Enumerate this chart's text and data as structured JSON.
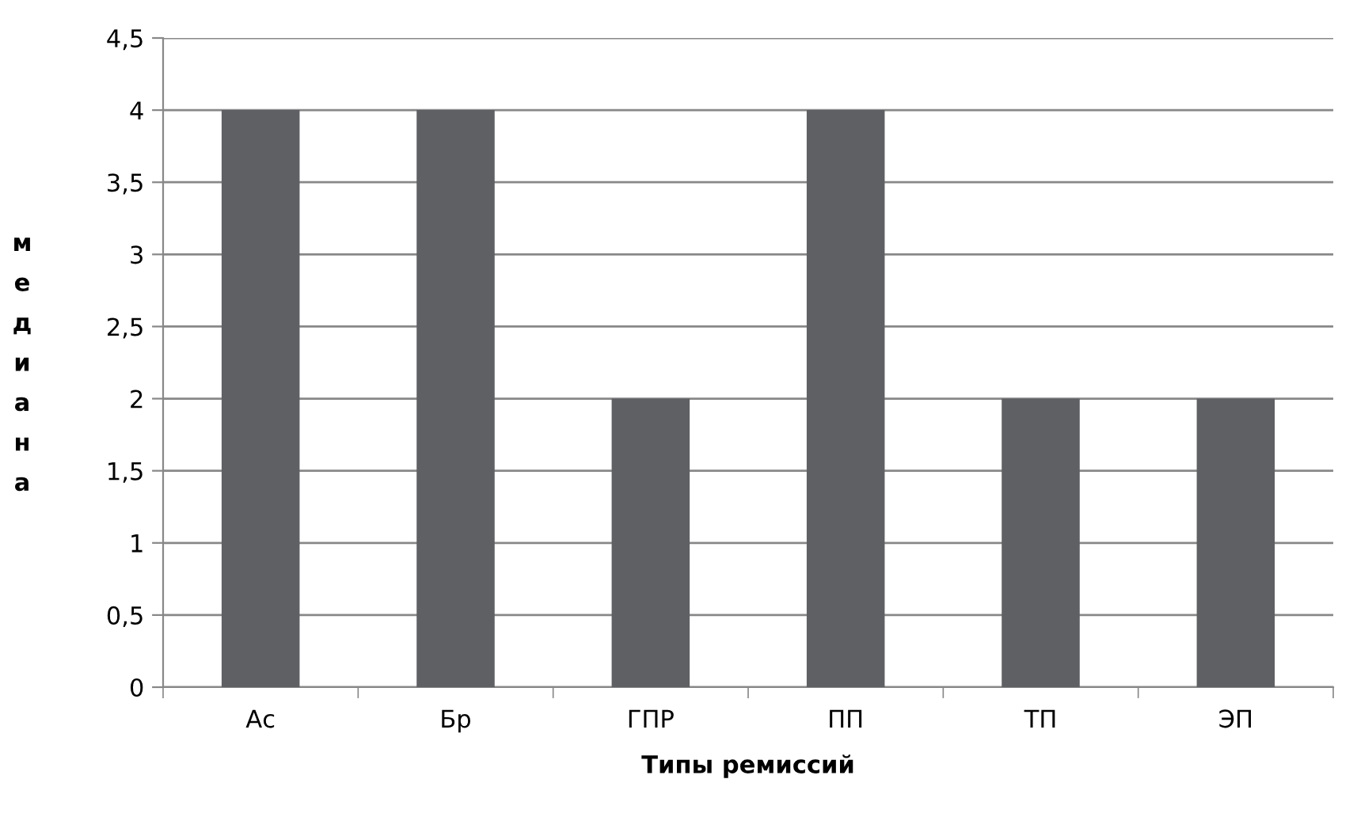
{
  "chart_data": {
    "type": "bar",
    "xlabel": "Типы ремиссий",
    "ylabel": "медиана",
    "categories": [
      "Ас",
      "Бр",
      "ГПР",
      "ПП",
      "ТП",
      "ЭП"
    ],
    "values": [
      4,
      4,
      2,
      4,
      2,
      2
    ],
    "color": "#5f6064",
    "ylim": [
      0,
      4.5
    ],
    "yticks": [
      0,
      {
        "value": 0.5,
        "label": "0,5"
      },
      1,
      {
        "value": 1.5,
        "label": "1,5"
      },
      2,
      {
        "value": 2.5,
        "label": "2,5"
      },
      3,
      {
        "value": 3.5,
        "label": "3,5"
      },
      4,
      {
        "value": 4.5,
        "label": "4,5"
      }
    ],
    "grid": "y"
  }
}
